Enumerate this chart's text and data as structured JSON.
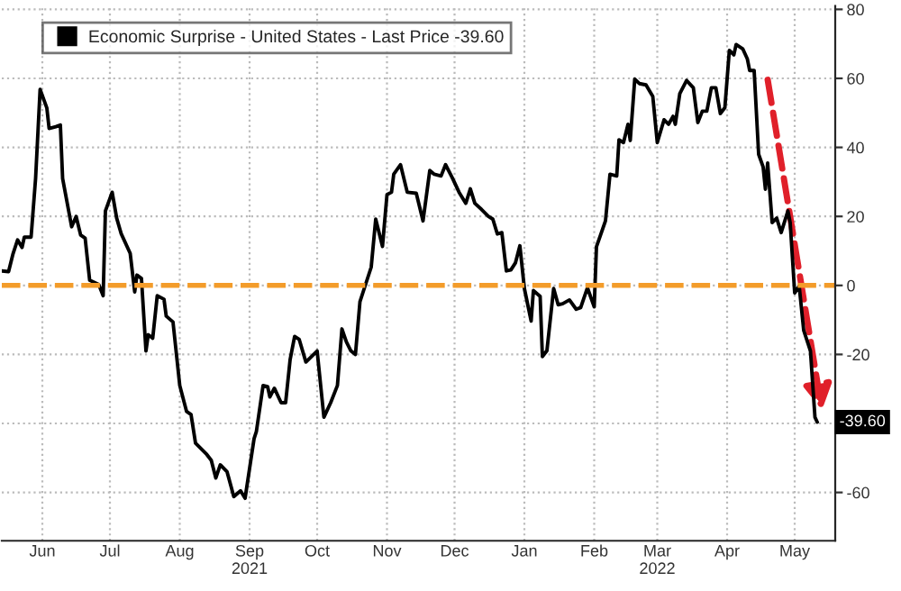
{
  "chart_data": {
    "type": "line",
    "x": [
      "2021-05-28",
      "2021-05-31",
      "2021-06-02",
      "2021-06-04",
      "2021-06-06",
      "2021-06-07",
      "2021-06-10",
      "2021-06-12",
      "2021-06-14",
      "2021-06-17",
      "2021-06-18",
      "2021-06-21",
      "2021-06-23",
      "2021-06-24",
      "2021-06-28",
      "2021-06-30",
      "2021-07-02",
      "2021-07-04",
      "2021-07-06",
      "2021-07-10",
      "2021-07-12",
      "2021-07-13",
      "2021-07-16",
      "2021-07-18",
      "2021-07-20",
      "2021-07-24",
      "2021-07-26",
      "2021-07-27",
      "2021-07-29",
      "2021-07-31",
      "2021-08-01",
      "2021-08-03",
      "2021-08-05",
      "2021-08-08",
      "2021-08-09",
      "2021-08-12",
      "2021-08-15",
      "2021-08-18",
      "2021-08-20",
      "2021-08-22",
      "2021-08-27",
      "2021-08-29",
      "2021-08-31",
      "2021-09-02",
      "2021-09-05",
      "2021-09-08",
      "2021-09-11",
      "2021-09-13",
      "2021-09-17",
      "2021-09-18",
      "2021-09-21",
      "2021-09-23",
      "2021-09-24",
      "2021-09-26",
      "2021-09-29",
      "2021-10-01",
      "2021-10-03",
      "2021-10-05",
      "2021-10-07",
      "2021-10-10",
      "2021-10-15",
      "2021-10-18",
      "2021-10-21",
      "2021-10-24",
      "2021-10-26",
      "2021-10-28",
      "2021-10-30",
      "2021-11-01",
      "2021-11-03",
      "2021-11-05",
      "2021-11-08",
      "2021-11-10",
      "2021-11-13",
      "2021-11-15",
      "2021-11-17",
      "2021-11-18",
      "2021-11-21",
      "2021-11-24",
      "2021-11-28",
      "2021-12-01",
      "2021-12-04",
      "2021-12-06",
      "2021-12-09",
      "2021-12-11",
      "2021-12-14",
      "2021-12-17",
      "2021-12-20",
      "2021-12-22",
      "2021-12-24",
      "2021-12-27",
      "2021-12-30",
      "2022-01-01",
      "2022-01-03",
      "2022-01-05",
      "2022-01-07",
      "2022-01-09",
      "2022-01-11",
      "2022-01-13",
      "2022-01-15",
      "2022-01-18",
      "2022-01-19",
      "2022-01-22",
      "2022-01-23",
      "2022-01-25",
      "2022-01-28",
      "2022-01-30",
      "2022-02-01",
      "2022-02-04",
      "2022-02-07",
      "2022-02-09",
      "2022-02-12",
      "2022-02-15",
      "2022-02-16",
      "2022-02-20",
      "2022-02-22",
      "2022-02-25",
      "2022-02-26",
      "2022-02-28",
      "2022-03-02",
      "2022-03-03",
      "2022-03-05",
      "2022-03-07",
      "2022-03-10",
      "2022-03-13",
      "2022-03-15",
      "2022-03-18",
      "2022-03-20",
      "2022-03-22",
      "2022-03-23",
      "2022-03-25",
      "2022-03-28",
      "2022-03-31",
      "2022-04-02",
      "2022-04-04",
      "2022-04-06",
      "2022-04-08",
      "2022-04-10",
      "2022-04-12",
      "2022-04-14",
      "2022-04-16",
      "2022-04-18",
      "2022-04-19",
      "2022-04-22",
      "2022-04-24",
      "2022-04-25",
      "2022-04-27",
      "2022-04-29",
      "2022-05-01",
      "2022-05-02",
      "2022-05-03",
      "2022-05-05",
      "2022-05-07",
      "2022-05-09",
      "2022-05-12",
      "2022-05-13",
      "2022-05-15",
      "2022-05-17",
      "2022-05-19",
      "2022-05-22",
      "2022-05-24",
      "2022-05-25"
    ],
    "series": [
      {
        "name": "Economic Surprise - United States - Last Price -39.60",
        "color": "#000000",
        "values": [
          4.2,
          4,
          9.2,
          13.2,
          11,
          14,
          14,
          31,
          56.8,
          51.4,
          45.5,
          46,
          46.5,
          31,
          17,
          20,
          14.6,
          13.7,
          1.5,
          0.3,
          -3,
          21.6,
          27,
          19.5,
          15,
          9.3,
          -1.9,
          3,
          2,
          -19,
          -14.3,
          -15.3,
          -3,
          -4,
          -8.9,
          -10.6,
          -29,
          -36.5,
          -37.4,
          -45.7,
          -49,
          -50.7,
          -55.8,
          -52,
          -54,
          -61.2,
          -59.5,
          -61.7,
          -44.4,
          -42.4,
          -29,
          -29.3,
          -32.3,
          -29.8,
          -34,
          -34,
          -21.5,
          -14.8,
          -15.6,
          -22.2,
          -19,
          -38.2,
          -34,
          -29,
          -12.6,
          -16.4,
          -19,
          -20,
          -4.7,
          -0.7,
          5.3,
          19.2,
          11.3,
          26.3,
          27,
          32.2,
          35,
          27,
          26.7,
          18.7,
          33.3,
          32.2,
          31.7,
          35,
          31.2,
          27,
          23.8,
          28,
          23.8,
          22,
          20,
          19.2,
          14.9,
          15.3,
          4.2,
          4.5,
          6.5,
          11.5,
          -0.9,
          -10.3,
          -1.5,
          -3.2,
          -20.6,
          -18.9,
          -0.9,
          -5.6,
          -5.3,
          -4.2,
          -6.9,
          -6.4,
          -0.7,
          -6.2,
          11.2,
          18.7,
          32.2,
          31.7,
          42.2,
          41.4,
          46.7,
          42,
          59.8,
          58.5,
          58.1,
          54.8,
          41.4,
          48,
          46.7,
          49,
          46.7,
          55.6,
          59.4,
          57.3,
          47.2,
          50.5,
          50.5,
          57.3,
          57.3,
          49.8,
          51.5,
          68.1,
          66.8,
          69.8,
          68.5,
          65.6,
          62.3,
          62.3,
          38,
          34.3,
          27.9,
          35.5,
          18.2,
          19.5,
          15.3,
          21.6,
          18.2,
          -2.2,
          -0.2,
          -13,
          -19,
          -38.2,
          -39.6
        ]
      }
    ],
    "xlim": [
      "2021-05-28",
      "2022-06-02"
    ],
    "xticks": [
      {
        "value": "2021-06-15",
        "label": "Jun"
      },
      {
        "value": "2021-07-15",
        "label": "Jul"
      },
      {
        "value": "2021-08-15",
        "label": "Aug"
      },
      {
        "value": "2021-09-15",
        "label": "Sep\n2021"
      },
      {
        "value": "2021-10-15",
        "label": "Oct"
      },
      {
        "value": "2021-11-15",
        "label": "Nov"
      },
      {
        "value": "2021-12-15",
        "label": "Dec"
      },
      {
        "value": "2022-01-15",
        "label": "Jan"
      },
      {
        "value": "2022-02-15",
        "label": "Feb"
      },
      {
        "value": "2022-03-15",
        "label": "Mar\n2022"
      },
      {
        "value": "2022-04-15",
        "label": "Apr"
      },
      {
        "value": "2022-05-15",
        "label": "May"
      }
    ],
    "ylim": [
      -74,
      81
    ],
    "yticks": [
      -60,
      {
        "value": -40,
        "label": null
      },
      -20,
      0,
      20,
      40,
      60,
      80
    ],
    "ref_lines": [
      {
        "axis": "y",
        "value": 0,
        "color": "#f39c2a",
        "line_style": "dashed"
      }
    ],
    "annotations": [
      {
        "text": "-39.60",
        "x": "2022-05-25",
        "y": -39.6
      }
    ],
    "grid": true,
    "legend": "top",
    "line_style": "solid",
    "marker": "none"
  }
}
